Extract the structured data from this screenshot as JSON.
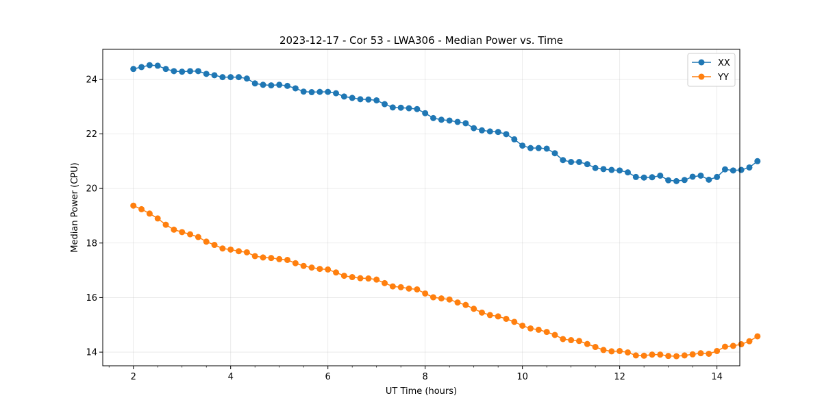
{
  "chart_data": {
    "type": "line",
    "title": "2023-12-17 - Cor 53 - LWA306 - Median Power vs. Time",
    "xlabel": "UT Time (hours)",
    "ylabel": "Median Power (CPU)",
    "xlim": [
      1.37,
      14.47
    ],
    "ylim": [
      13.5,
      25.1
    ],
    "xticks": [
      2,
      4,
      6,
      8,
      10,
      12,
      14
    ],
    "yticks": [
      14,
      16,
      18,
      20,
      22,
      24
    ],
    "grid": true,
    "legend_position": "top-right",
    "x": [
      2.0,
      2.1667,
      2.3333,
      2.5,
      2.6667,
      2.8333,
      3.0,
      3.1667,
      3.3333,
      3.5,
      3.6667,
      3.8333,
      4.0,
      4.1667,
      4.3333,
      4.5,
      4.6667,
      4.8333,
      5.0,
      5.1667,
      5.3333,
      5.5,
      5.6667,
      5.8333,
      6.0,
      6.1667,
      6.3333,
      6.5,
      6.6667,
      6.8333,
      7.0,
      7.1667,
      7.3333,
      7.5,
      7.6667,
      7.8333,
      8.0,
      8.1667,
      8.3333,
      8.5,
      8.6667,
      8.8333,
      9.0,
      9.1667,
      9.3333,
      9.5,
      9.6667,
      9.8333,
      10.0,
      10.1667,
      10.3333,
      10.5,
      10.6667,
      10.8333,
      11.0,
      11.1667,
      11.3333,
      11.5,
      11.6667,
      11.8333,
      12.0,
      12.1667,
      12.3333,
      12.5,
      12.6667,
      12.8333,
      13.0,
      13.1667,
      13.3333,
      13.5,
      13.6667,
      13.8333,
      14.0,
      14.1667,
      14.3333,
      14.5,
      14.6667,
      14.8333
    ],
    "series": [
      {
        "name": "XX",
        "color": "#1f77b4",
        "values": [
          24.38,
          24.45,
          24.52,
          24.5,
          24.38,
          24.3,
          24.28,
          24.3,
          24.3,
          24.2,
          24.15,
          24.08,
          24.08,
          24.08,
          24.03,
          23.85,
          23.8,
          23.78,
          23.8,
          23.76,
          23.67,
          23.55,
          23.53,
          23.54,
          23.54,
          23.49,
          23.37,
          23.32,
          23.27,
          23.26,
          23.23,
          23.09,
          22.97,
          22.96,
          22.94,
          22.91,
          22.76,
          22.58,
          22.52,
          22.49,
          22.44,
          22.39,
          22.21,
          22.13,
          22.09,
          22.07,
          21.99,
          21.8,
          21.57,
          21.48,
          21.48,
          21.46,
          21.29,
          21.04,
          20.97,
          20.97,
          20.89,
          20.75,
          20.71,
          20.68,
          20.66,
          20.59,
          20.42,
          20.4,
          20.41,
          20.47,
          20.3,
          20.27,
          20.31,
          20.43,
          20.47,
          20.32,
          20.42,
          20.7,
          20.66,
          20.68,
          20.77,
          21.0
        ]
      },
      {
        "name": "YY",
        "color": "#ff7f0e",
        "values": [
          19.37,
          19.24,
          19.08,
          18.9,
          18.67,
          18.49,
          18.4,
          18.32,
          18.22,
          18.05,
          17.93,
          17.8,
          17.76,
          17.7,
          17.66,
          17.52,
          17.47,
          17.45,
          17.41,
          17.38,
          17.26,
          17.16,
          17.1,
          17.05,
          17.03,
          16.92,
          16.8,
          16.75,
          16.71,
          16.7,
          16.66,
          16.53,
          16.41,
          16.38,
          16.33,
          16.3,
          16.15,
          16.01,
          15.97,
          15.93,
          15.82,
          15.73,
          15.59,
          15.45,
          15.36,
          15.31,
          15.22,
          15.11,
          14.97,
          14.87,
          14.82,
          14.74,
          14.63,
          14.48,
          14.44,
          14.41,
          14.3,
          14.19,
          14.08,
          14.03,
          14.04,
          13.99,
          13.88,
          13.87,
          13.91,
          13.91,
          13.86,
          13.85,
          13.88,
          13.92,
          13.96,
          13.94,
          14.04,
          14.2,
          14.23,
          14.29,
          14.4,
          14.58
        ]
      }
    ]
  }
}
